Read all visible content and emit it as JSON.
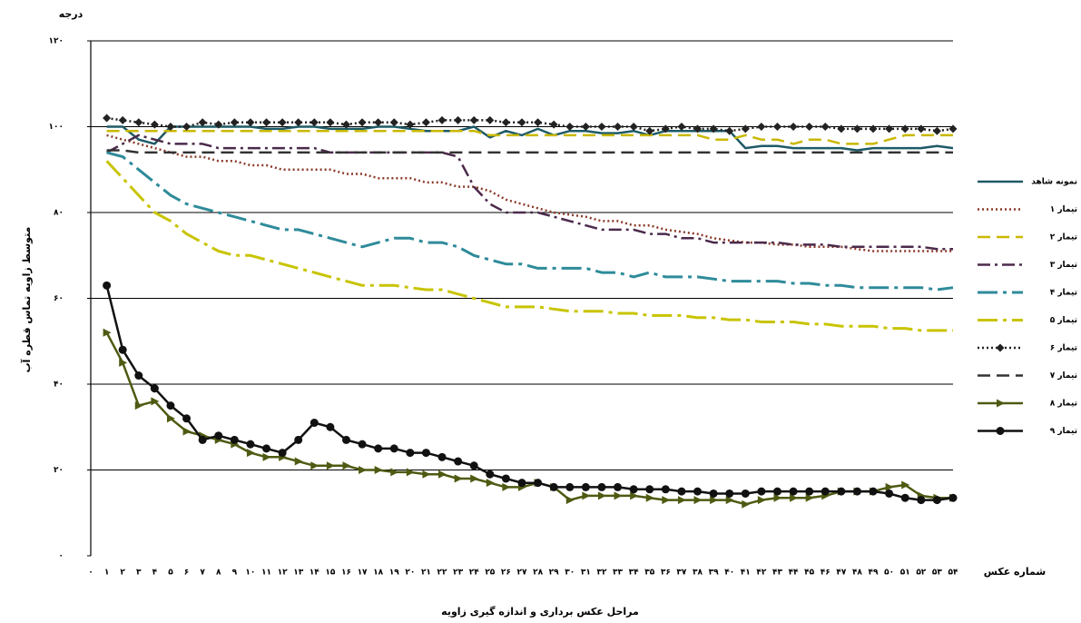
{
  "chart_data": {
    "type": "line",
    "unit_label": "درجه",
    "y_label": "متوسط زاویه تماس قطره آب",
    "x_label": "مراحل عکس برداری و اندازه گیری زاویه",
    "x_end_label": "شماره عکس",
    "categories": [
      "۰",
      "۱",
      "۲",
      "۳",
      "۴",
      "۵",
      "۶",
      "۷",
      "۸",
      "۹",
      "۱۰",
      "۱۱",
      "۱۲",
      "۱۳",
      "۱۴",
      "۱۵",
      "۱۶",
      "۱۷",
      "۱۸",
      "۱۹",
      "۲۰",
      "۲۱",
      "۲۲",
      "۲۳",
      "۲۴",
      "۲۵",
      "۲۶",
      "۲۷",
      "۲۸",
      "۲۹",
      "۳۰",
      "۳۱",
      "۳۲",
      "۳۳",
      "۳۴",
      "۳۵",
      "۳۶",
      "۳۷",
      "۳۸",
      "۳۹",
      "۴۰",
      "۴۱",
      "۴۲",
      "۴۳",
      "۴۴",
      "۴۵",
      "۴۶",
      "۴۷",
      "۴۸",
      "۴۹",
      "۵۰",
      "۵۱",
      "۵۲",
      "۵۳",
      "۵۴"
    ],
    "ylim": [
      0,
      120
    ],
    "yticks": [
      {
        "value": 0,
        "label": "۰"
      },
      {
        "value": 20,
        "label": "۲۰"
      },
      {
        "value": 40,
        "label": "۴۰"
      },
      {
        "value": 60,
        "label": "۶۰"
      },
      {
        "value": 80,
        "label": "۸۰"
      },
      {
        "value": 100,
        "label": "۱۰۰"
      },
      {
        "value": 120,
        "label": "۱۲۰"
      }
    ],
    "grid": true,
    "legend": "right",
    "series": [
      {
        "name": "نمونه شاهد",
        "color": "#1e5a66",
        "dash": "solid",
        "marker": "none",
        "values": [
          null,
          100,
          100,
          97,
          96,
          100,
          100,
          100,
          100,
          100,
          100,
          99.5,
          99.5,
          100,
          100,
          99.5,
          99.5,
          99.5,
          100,
          100,
          99.5,
          99,
          99,
          99,
          100,
          97.5,
          99,
          98,
          99.5,
          98,
          99,
          99,
          98.5,
          98.5,
          99,
          98,
          99,
          99,
          99,
          99,
          99,
          95,
          95.5,
          95.5,
          95,
          95,
          95,
          95,
          94.5,
          95,
          95,
          95,
          95,
          95.5,
          95
        ]
      },
      {
        "name": "تیمار ۱",
        "color": "#8b3a2a",
        "dash": "dotted",
        "marker": "none",
        "values": [
          null,
          98,
          97,
          96,
          95,
          94,
          93,
          93,
          92,
          92,
          91,
          91,
          90,
          90,
          90,
          90,
          89,
          89,
          88,
          88,
          88,
          87,
          87,
          86,
          86,
          85,
          83,
          82,
          81,
          80,
          79.5,
          79,
          78,
          78,
          77,
          77,
          76,
          75.5,
          75,
          74,
          73.5,
          73,
          73,
          72.5,
          72.5,
          72,
          72,
          72,
          71.5,
          71,
          71,
          71,
          71,
          71,
          71
        ]
      },
      {
        "name": "تیمار ۲",
        "color": "#c9b800",
        "dash": "dashed",
        "marker": "none",
        "values": [
          null,
          99,
          99,
          99,
          99,
          99,
          99,
          99,
          99,
          99,
          99,
          99,
          99,
          99,
          99,
          99,
          99,
          99,
          99,
          99,
          99,
          99,
          99,
          99,
          99,
          98,
          98,
          98,
          98,
          98,
          98,
          98,
          98,
          98,
          98,
          98,
          98,
          98,
          98,
          97,
          97,
          98,
          97,
          97,
          96,
          97,
          97,
          96,
          96,
          96,
          97,
          98,
          98,
          98,
          98
        ]
      },
      {
        "name": "تیمار ۳",
        "color": "#4b2a4b",
        "dash": "dashdot",
        "marker": "none",
        "values": [
          null,
          94,
          96,
          98,
          97,
          96,
          96,
          96,
          95,
          95,
          95,
          95,
          95,
          95,
          95,
          94,
          94,
          94,
          94,
          94,
          94,
          94,
          94,
          93,
          86,
          82,
          80,
          80,
          80,
          79,
          78,
          77,
          76,
          76,
          76,
          75,
          75,
          74,
          74,
          73,
          73,
          73,
          73,
          73,
          72.5,
          72.5,
          72.5,
          72,
          72,
          72,
          72,
          72,
          72,
          71.5,
          71.5
        ]
      },
      {
        "name": "تیمار ۴",
        "color": "#2e8b9a",
        "dash": "longdashdot",
        "marker": "none",
        "values": [
          null,
          94,
          93,
          90,
          87,
          84,
          82,
          81,
          80,
          79,
          78,
          77,
          76,
          76,
          75,
          74,
          73,
          72,
          73,
          74,
          74,
          73,
          73,
          72,
          70,
          69,
          68,
          68,
          67,
          67,
          67,
          67,
          66,
          66,
          65,
          66,
          65,
          65,
          65,
          64.5,
          64,
          64,
          64,
          64,
          63.5,
          63.5,
          63,
          63,
          62.5,
          62.5,
          62.5,
          62.5,
          62.5,
          62,
          62.5
        ]
      },
      {
        "name": "تیمار ۵",
        "color": "#c8c400",
        "dash": "longdashdot",
        "marker": "none",
        "values": [
          null,
          92,
          88,
          84,
          80,
          78,
          75,
          73,
          71,
          70,
          70,
          69,
          68,
          67,
          66,
          65,
          64,
          63,
          63,
          63,
          62.5,
          62,
          62,
          61,
          60,
          59,
          58,
          58,
          58,
          57.5,
          57,
          57,
          57,
          56.5,
          56.5,
          56,
          56,
          56,
          55.5,
          55.5,
          55,
          55,
          54.5,
          54.5,
          54.5,
          54,
          54,
          53.5,
          53.5,
          53.5,
          53,
          53,
          52.5,
          52.5,
          52.5
        ]
      },
      {
        "name": "تیمار ۶",
        "color": "#222222",
        "dash": "dotted",
        "marker": "diamond",
        "values": [
          null,
          102,
          101.5,
          101,
          100.5,
          100,
          100,
          101,
          100.5,
          101,
          101,
          101,
          101,
          101,
          101,
          101,
          100.5,
          101,
          101,
          101,
          100.5,
          101,
          101.5,
          101.5,
          101.5,
          101.5,
          101,
          101,
          101,
          100.5,
          100,
          100,
          100,
          100,
          100,
          99,
          99.5,
          100,
          99.5,
          99.5,
          99,
          99.5,
          100,
          100,
          100,
          100,
          100,
          99.5,
          99.5,
          99.5,
          99.5,
          99.5,
          99.5,
          99,
          99.5
        ]
      },
      {
        "name": "تیمار ۷",
        "color": "#333333",
        "dash": "dashed",
        "marker": "none",
        "values": [
          null,
          94.5,
          94.5,
          94,
          94,
          94,
          94,
          94,
          94,
          94,
          94,
          94,
          94,
          94,
          94,
          94,
          94,
          94,
          94,
          94,
          94,
          94,
          94,
          94,
          94,
          94,
          94,
          94,
          94,
          94,
          94,
          94,
          94,
          94,
          94,
          94,
          94,
          94,
          94,
          94,
          94,
          94,
          94,
          94,
          94,
          94,
          94,
          94,
          94,
          94,
          94,
          94,
          94,
          94,
          94
        ]
      },
      {
        "name": "تیمار ۸",
        "color": "#4f5a12",
        "dash": "solid",
        "marker": "triangle",
        "values": [
          null,
          52,
          45,
          35,
          36,
          32,
          29,
          28,
          27,
          26,
          24,
          23,
          23,
          22,
          21,
          21,
          21,
          20,
          20,
          19.5,
          19.5,
          19,
          19,
          18,
          18,
          17,
          16,
          16,
          17,
          16,
          13,
          14,
          14,
          14,
          14,
          13.5,
          13,
          13,
          13,
          13,
          13,
          12,
          13,
          13.5,
          13.5,
          13.5,
          14,
          15,
          15,
          15,
          16,
          16.5,
          14,
          13.5,
          13.5
        ]
      },
      {
        "name": "تیمار ۹",
        "color": "#111111",
        "dash": "solid",
        "marker": "circle",
        "values": [
          null,
          63,
          48,
          42,
          39,
          35,
          32,
          27,
          28,
          27,
          26,
          25,
          24,
          27,
          31,
          30,
          27,
          26,
          25,
          25,
          24,
          24,
          23,
          22,
          21,
          19,
          18,
          17,
          17,
          16,
          16,
          16,
          16,
          16,
          15.5,
          15.5,
          15.5,
          15,
          15,
          14.5,
          14.5,
          14.5,
          15,
          15,
          15,
          15,
          15,
          15,
          15,
          15,
          14.5,
          13.5,
          13,
          13,
          13.5
        ]
      }
    ]
  }
}
